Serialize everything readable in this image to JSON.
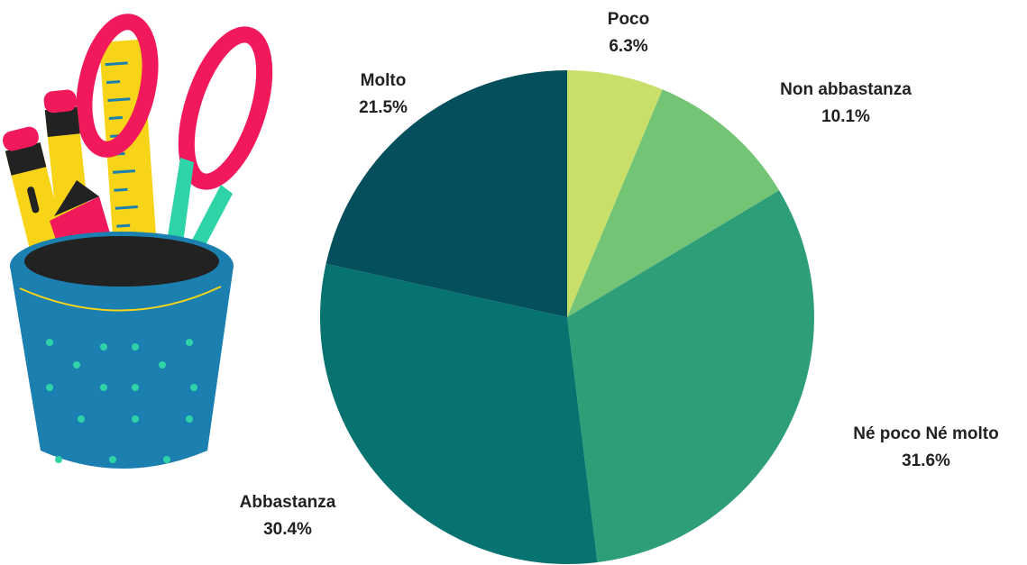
{
  "chart_data": {
    "type": "pie",
    "categories": [
      "Poco",
      "Non abbastanza",
      "Né poco Né molto",
      "Abbastanza",
      "Molto"
    ],
    "values": [
      6.3,
      10.1,
      31.6,
      30.4,
      21.5
    ],
    "value_labels": [
      "6.3%",
      "10.1%",
      "31.6%",
      "30.4%",
      "21.5%"
    ],
    "colors": [
      "#c8e06a",
      "#74c476",
      "#2e9e78",
      "#067370",
      "#044f5c"
    ]
  }
}
